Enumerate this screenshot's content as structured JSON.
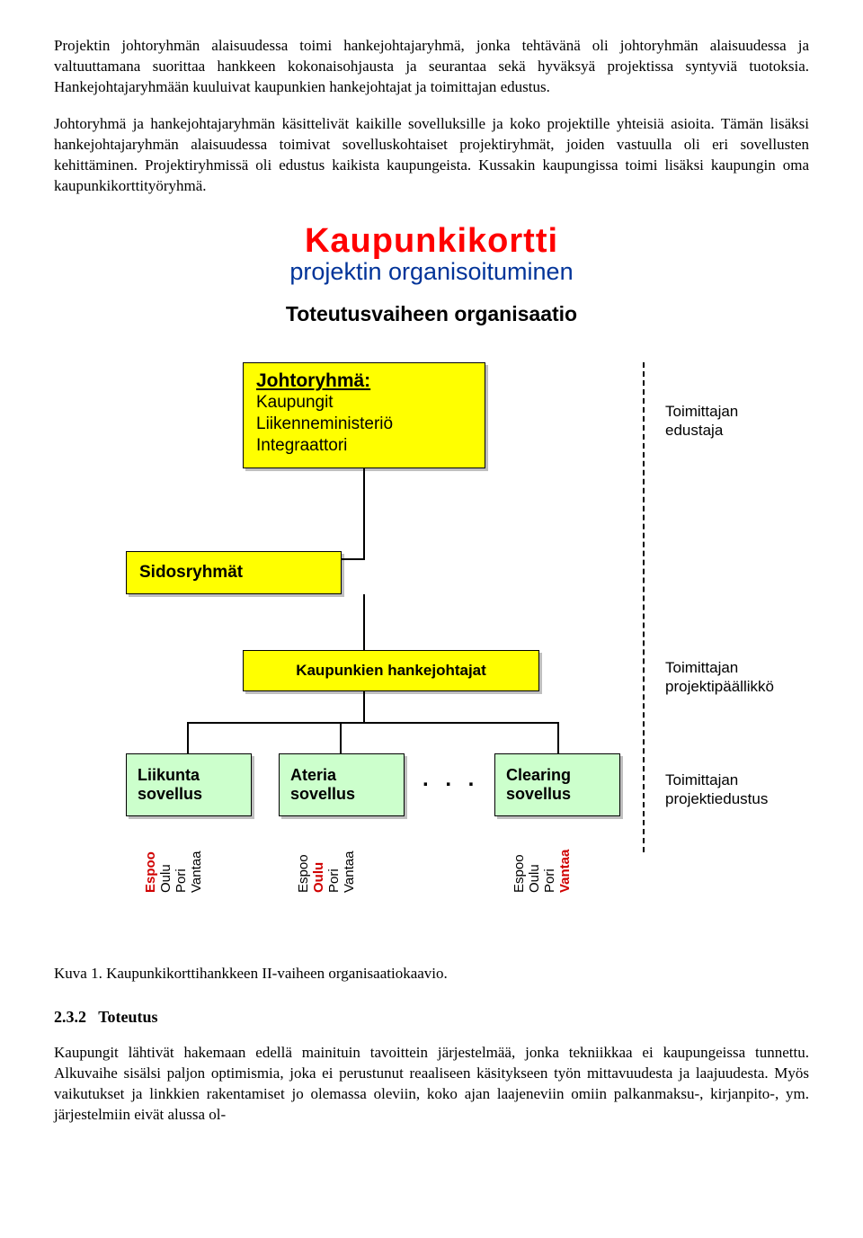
{
  "para1": "Projektin johtoryhmän alaisuudessa toimi hankejohtajaryhmä, jonka tehtävänä oli johtoryhmän alaisuudessa ja valtuuttamana suorittaa hankkeen kokonaisohjausta ja seurantaa sekä hyväksyä projektissa syntyviä tuotoksia. Hankejohtajaryhmään kuuluivat kaupunkien hankejohtajat ja toimittajan edustus.",
  "para2": "Johtoryhmä ja hankejohtajaryhmän käsittelivät kaikille sovelluksille ja koko projektille yhteisiä asioita. Tämän lisäksi hankejohtajaryhmän alaisuudessa toimivat sovelluskohtaiset projektiryhmät, joiden vastuulla oli eri sovellusten kehittäminen. Projektiryhmissä oli edustus kaikista kaupungeista. Kussakin kaupungissa toimi lisäksi kaupungin oma kaupunkikorttityöryhmä.",
  "diagram": {
    "title_main": "Kaupunkikortti",
    "title_main_color": "#ff0000",
    "subtitle": "projektin organisoituminen",
    "subtitle_color": "#003399",
    "section_title": "Toteutusvaiheen organisaatio",
    "johtory": {
      "title": "Johtoryhmä:",
      "lines": [
        "Kaupungit",
        "Liikenneministeriö",
        "Integraattori"
      ]
    },
    "sidos": "Sidosryhmät",
    "hanke": "Kaupunkien hankejohtajat",
    "sov": [
      {
        "l1": "Liikunta",
        "l2": "sovellus"
      },
      {
        "l1": "Ateria",
        "l2": "sovellus"
      },
      {
        "l1": "Clearing",
        "l2": "sovellus"
      }
    ],
    "dots": ". . .",
    "city_groups": [
      {
        "cities": [
          "Espoo",
          "Oulu",
          "Pori",
          "Vantaa"
        ],
        "bold_idx": 0
      },
      {
        "cities": [
          "Espoo",
          "Oulu",
          "Pori",
          "Vantaa"
        ],
        "bold_idx": 1
      },
      {
        "cities": [
          "Espoo",
          "Oulu",
          "Pori",
          "Vantaa"
        ],
        "bold_idx": 3
      }
    ],
    "side_labels": [
      "Toimittajan\nedustaja",
      "Toimittajan\nprojektipäällikkö",
      "Toimittajan\nprojektiedustus"
    ],
    "colors": {
      "yellow_box": "#ffff00",
      "green_box": "#ccffcc",
      "bold_city": "#d00000"
    }
  },
  "caption": "Kuva 1. Kaupunkikorttihankkeen II-vaiheen organisaatiokaavio.",
  "section_no": "2.3.2",
  "section_title": "Toteutus",
  "para3": "Kaupungit lähtivät hakemaan edellä mainituin tavoittein järjestelmää, jonka tekniikkaa ei kaupungeissa tunnettu. Alkuvaihe sisälsi paljon optimismia, joka ei perustunut reaaliseen käsitykseen työn mittavuudesta ja laajuudesta. Myös vaikutukset ja linkkien rakentamiset jo olemassa oleviin, koko ajan laajeneviin omiin palkanmaksu-, kirjanpito-, ym. järjestelmiin eivät alussa ol-"
}
